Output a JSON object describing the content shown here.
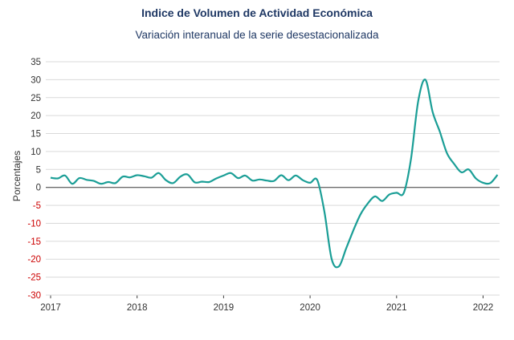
{
  "header": {
    "title": "Indice de Volumen de  Actividad Económica",
    "subtitle": "Variación interanual de la serie desestacionalizada"
  },
  "colors": {
    "line": "#1a9e96",
    "negative_tick": "#cc0000",
    "positive_tick": "#333333",
    "grid": "#d9d9d9",
    "zero_line": "#404040",
    "title": "#1f3864"
  },
  "chart_data": {
    "type": "line",
    "title": "Indice de Volumen de  Actividad Económica",
    "subtitle": "Variación interanual de la serie desestacionalizada",
    "xlabel": "",
    "ylabel": "Porcentajes",
    "ylim": [
      -30,
      35
    ],
    "y_ticks": [
      35,
      30,
      25,
      20,
      15,
      10,
      5,
      0,
      -5,
      -10,
      -15,
      -20,
      -25,
      -30
    ],
    "x_ticks": [
      "2017",
      "2018",
      "2019",
      "2020",
      "2021",
      "2022"
    ],
    "grid": "horizontal",
    "series": [
      {
        "x": [
          "2017-01",
          "2017-02",
          "2017-03",
          "2017-04",
          "2017-05",
          "2017-06",
          "2017-07",
          "2017-08",
          "2017-09",
          "2017-10",
          "2017-11",
          "2017-12",
          "2018-01",
          "2018-02",
          "2018-03",
          "2018-04",
          "2018-05",
          "2018-06",
          "2018-07",
          "2018-08",
          "2018-09",
          "2018-10",
          "2018-11",
          "2018-12",
          "2019-01",
          "2019-02",
          "2019-03",
          "2019-04",
          "2019-05",
          "2019-06",
          "2019-07",
          "2019-08",
          "2019-09",
          "2019-10",
          "2019-11",
          "2019-12",
          "2020-01",
          "2020-02",
          "2020-03",
          "2020-04",
          "2020-05",
          "2020-06",
          "2020-07",
          "2020-08",
          "2020-09",
          "2020-10",
          "2020-11",
          "2020-12",
          "2021-01",
          "2021-02",
          "2021-03",
          "2021-04",
          "2021-05",
          "2021-06",
          "2021-07",
          "2021-08",
          "2021-09",
          "2021-10",
          "2021-11",
          "2021-12",
          "2022-01",
          "2022-02",
          "2022-03"
        ],
        "values": [
          2.7,
          2.5,
          3.3,
          1.0,
          2.6,
          2.1,
          1.8,
          1.0,
          1.5,
          1.2,
          3.0,
          2.8,
          3.4,
          3.1,
          2.7,
          4.0,
          2.0,
          1.2,
          3.0,
          3.6,
          1.4,
          1.6,
          1.5,
          2.5,
          3.3,
          4.0,
          2.6,
          3.3,
          1.9,
          2.2,
          1.9,
          1.8,
          3.4,
          2.0,
          3.3,
          2.0,
          1.3,
          2.0,
          -7.0,
          -20.0,
          -22.0,
          -17.0,
          -12.0,
          -7.5,
          -4.5,
          -2.5,
          -3.8,
          -2.0,
          -1.5,
          -1.5,
          8.0,
          24.0,
          30.0,
          21.0,
          15.5,
          9.5,
          6.5,
          4.2,
          5.0,
          2.5,
          1.3,
          1.2,
          3.5
        ]
      }
    ]
  }
}
